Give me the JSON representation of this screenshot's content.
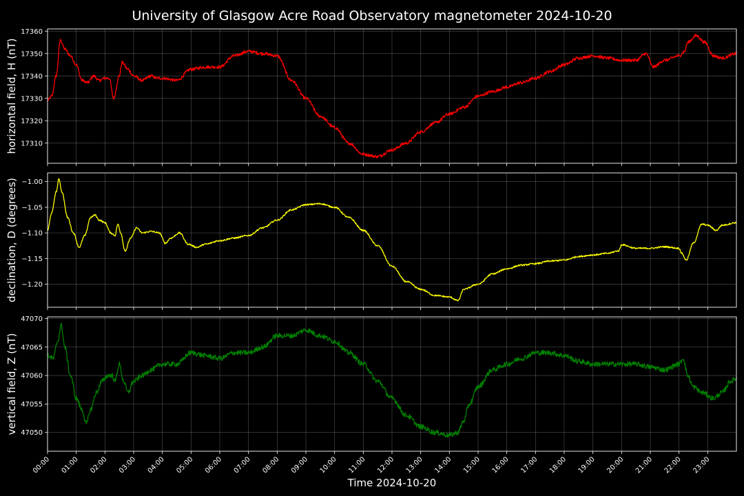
{
  "chart_data": {
    "type": "line",
    "title": "University of Glasgow Acre Road Observatory magnetometer 2024-10-20",
    "xlabel": "Time 2024-10-20",
    "x_ticks": [
      "00:00",
      "01:00",
      "02:00",
      "03:00",
      "04:00",
      "05:00",
      "06:00",
      "07:00",
      "08:00",
      "09:00",
      "10:00",
      "11:00",
      "12:00",
      "13:00",
      "14:00",
      "15:00",
      "16:00",
      "17:00",
      "18:00",
      "19:00",
      "20:00",
      "21:00",
      "22:00",
      "23:00"
    ],
    "xlim": [
      0,
      24
    ],
    "grid": true,
    "panels": [
      {
        "name": "H",
        "ylabel": "horizontal field, H (nT)",
        "color": "#ff0000",
        "ylim": [
          17301,
          17361
        ],
        "y_ticks": [
          "17310",
          "17320",
          "17330",
          "17340",
          "17350",
          "17360"
        ],
        "y_tick_values": [
          17310,
          17320,
          17330,
          17340,
          17350,
          17360
        ],
        "noise": 0.7,
        "points": [
          [
            0,
            17329
          ],
          [
            0.15,
            17331
          ],
          [
            0.3,
            17340
          ],
          [
            0.45,
            17356
          ],
          [
            0.6,
            17352
          ],
          [
            0.8,
            17349
          ],
          [
            1.0,
            17345
          ],
          [
            1.2,
            17338
          ],
          [
            1.4,
            17337
          ],
          [
            1.6,
            17340
          ],
          [
            1.8,
            17338
          ],
          [
            2.0,
            17339
          ],
          [
            2.15,
            17339
          ],
          [
            2.3,
            17330
          ],
          [
            2.5,
            17340
          ],
          [
            2.6,
            17346
          ],
          [
            2.8,
            17343
          ],
          [
            3.0,
            17340
          ],
          [
            3.3,
            17338
          ],
          [
            3.6,
            17340
          ],
          [
            3.8,
            17339
          ],
          [
            4.0,
            17339
          ],
          [
            4.5,
            17338
          ],
          [
            5.0,
            17343
          ],
          [
            5.5,
            17344
          ],
          [
            6.0,
            17344
          ],
          [
            6.5,
            17349
          ],
          [
            7.0,
            17351
          ],
          [
            7.5,
            17350
          ],
          [
            8.0,
            17349
          ],
          [
            8.5,
            17338
          ],
          [
            9.0,
            17330
          ],
          [
            9.5,
            17322
          ],
          [
            10.0,
            17317
          ],
          [
            10.5,
            17310
          ],
          [
            11.0,
            17305
          ],
          [
            11.5,
            17304
          ],
          [
            12.0,
            17307
          ],
          [
            12.5,
            17310
          ],
          [
            13.0,
            17315
          ],
          [
            13.5,
            17319
          ],
          [
            14.0,
            17323
          ],
          [
            14.5,
            17326
          ],
          [
            15.0,
            17331
          ],
          [
            15.5,
            17333
          ],
          [
            16.0,
            17335
          ],
          [
            16.5,
            17337
          ],
          [
            17.0,
            17339
          ],
          [
            17.5,
            17342
          ],
          [
            18.0,
            17345
          ],
          [
            18.5,
            17348
          ],
          [
            19.0,
            17349
          ],
          [
            19.5,
            17348
          ],
          [
            20.0,
            17347
          ],
          [
            20.5,
            17347
          ],
          [
            20.85,
            17350
          ],
          [
            21.1,
            17344
          ],
          [
            21.5,
            17347
          ],
          [
            22.0,
            17349
          ],
          [
            22.2,
            17351
          ],
          [
            22.3,
            17355
          ],
          [
            22.6,
            17358
          ],
          [
            22.9,
            17355
          ],
          [
            23.2,
            17349
          ],
          [
            23.5,
            17348
          ],
          [
            24.0,
            17350
          ]
        ]
      },
      {
        "name": "D",
        "ylabel": "declination, D (degrees)",
        "color": "#ffff00",
        "ylim": [
          -1.245,
          -0.983
        ],
        "y_ticks": [
          "−1.00",
          "−1.05",
          "−1.10",
          "−1.15",
          "−1.20"
        ],
        "y_tick_values": [
          -1.0,
          -1.05,
          -1.1,
          -1.15,
          -1.2
        ],
        "noise": 0.0015,
        "points": [
          [
            0,
            -1.095
          ],
          [
            0.15,
            -1.06
          ],
          [
            0.3,
            -1.02
          ],
          [
            0.4,
            -0.995
          ],
          [
            0.5,
            -1.02
          ],
          [
            0.7,
            -1.07
          ],
          [
            0.9,
            -1.1
          ],
          [
            1.1,
            -1.128
          ],
          [
            1.3,
            -1.105
          ],
          [
            1.5,
            -1.07
          ],
          [
            1.65,
            -1.065
          ],
          [
            1.8,
            -1.075
          ],
          [
            2.0,
            -1.08
          ],
          [
            2.2,
            -1.1
          ],
          [
            2.35,
            -1.105
          ],
          [
            2.45,
            -1.083
          ],
          [
            2.55,
            -1.1
          ],
          [
            2.7,
            -1.135
          ],
          [
            2.9,
            -1.11
          ],
          [
            3.1,
            -1.09
          ],
          [
            3.3,
            -1.1
          ],
          [
            3.6,
            -1.097
          ],
          [
            3.9,
            -1.1
          ],
          [
            4.1,
            -1.12
          ],
          [
            4.3,
            -1.11
          ],
          [
            4.6,
            -1.1
          ],
          [
            4.9,
            -1.122
          ],
          [
            5.2,
            -1.128
          ],
          [
            5.5,
            -1.122
          ],
          [
            6.0,
            -1.115
          ],
          [
            6.5,
            -1.11
          ],
          [
            7.0,
            -1.105
          ],
          [
            7.5,
            -1.09
          ],
          [
            8.0,
            -1.075
          ],
          [
            8.5,
            -1.055
          ],
          [
            9.0,
            -1.045
          ],
          [
            9.5,
            -1.043
          ],
          [
            10.0,
            -1.05
          ],
          [
            10.5,
            -1.07
          ],
          [
            11.0,
            -1.095
          ],
          [
            11.5,
            -1.125
          ],
          [
            12.0,
            -1.165
          ],
          [
            12.5,
            -1.195
          ],
          [
            13.0,
            -1.21
          ],
          [
            13.5,
            -1.222
          ],
          [
            14.0,
            -1.225
          ],
          [
            14.3,
            -1.232
          ],
          [
            14.5,
            -1.21
          ],
          [
            15.0,
            -1.2
          ],
          [
            15.5,
            -1.18
          ],
          [
            16.0,
            -1.17
          ],
          [
            16.5,
            -1.163
          ],
          [
            17.0,
            -1.16
          ],
          [
            17.5,
            -1.155
          ],
          [
            18.0,
            -1.153
          ],
          [
            18.5,
            -1.146
          ],
          [
            19.0,
            -1.143
          ],
          [
            19.5,
            -1.14
          ],
          [
            19.9,
            -1.135
          ],
          [
            20.0,
            -1.123
          ],
          [
            20.5,
            -1.13
          ],
          [
            21.0,
            -1.13
          ],
          [
            21.5,
            -1.127
          ],
          [
            22.0,
            -1.13
          ],
          [
            22.1,
            -1.14
          ],
          [
            22.25,
            -1.153
          ],
          [
            22.5,
            -1.12
          ],
          [
            22.8,
            -1.083
          ],
          [
            23.0,
            -1.085
          ],
          [
            23.3,
            -1.095
          ],
          [
            23.5,
            -1.085
          ],
          [
            24.0,
            -1.08
          ]
        ]
      },
      {
        "name": "Z",
        "ylabel": "vertical field, Z (nT)",
        "color": "#008000",
        "ylim": [
          47046.7,
          47070.3
        ],
        "y_ticks": [
          "47050",
          "47055",
          "47060",
          "47065",
          "47070"
        ],
        "y_tick_values": [
          47050,
          47055,
          47060,
          47065,
          47070
        ],
        "noise": 0.45,
        "points": [
          [
            0,
            47063.5
          ],
          [
            0.2,
            47063
          ],
          [
            0.35,
            47066
          ],
          [
            0.48,
            47068.8
          ],
          [
            0.6,
            47065
          ],
          [
            0.8,
            47060
          ],
          [
            1.0,
            47056
          ],
          [
            1.2,
            47054
          ],
          [
            1.35,
            47051.5
          ],
          [
            1.5,
            47054
          ],
          [
            1.7,
            47057
          ],
          [
            1.9,
            47059
          ],
          [
            2.1,
            47060
          ],
          [
            2.25,
            47060
          ],
          [
            2.35,
            47059
          ],
          [
            2.5,
            47062
          ],
          [
            2.65,
            47059
          ],
          [
            2.8,
            47057
          ],
          [
            3.0,
            47059
          ],
          [
            3.3,
            47060
          ],
          [
            3.6,
            47061
          ],
          [
            4.0,
            47062
          ],
          [
            4.5,
            47062
          ],
          [
            5.0,
            47064
          ],
          [
            5.5,
            47063.5
          ],
          [
            6.0,
            47063
          ],
          [
            6.5,
            47064
          ],
          [
            7.0,
            47064
          ],
          [
            7.5,
            47065
          ],
          [
            8.0,
            47067
          ],
          [
            8.5,
            47067
          ],
          [
            9.0,
            47068
          ],
          [
            9.5,
            47067
          ],
          [
            10.0,
            47066
          ],
          [
            10.5,
            47064
          ],
          [
            11.0,
            47062
          ],
          [
            11.5,
            47059
          ],
          [
            12.0,
            47056
          ],
          [
            12.5,
            47053
          ],
          [
            13.0,
            47051
          ],
          [
            13.5,
            47050
          ],
          [
            14.0,
            47049.5
          ],
          [
            14.3,
            47050
          ],
          [
            14.5,
            47052
          ],
          [
            14.7,
            47055
          ],
          [
            15.0,
            47058
          ],
          [
            15.5,
            47061
          ],
          [
            16.0,
            47062
          ],
          [
            16.5,
            47063
          ],
          [
            17.0,
            47064
          ],
          [
            17.5,
            47064
          ],
          [
            18.0,
            47063.5
          ],
          [
            18.5,
            47062.5
          ],
          [
            19.0,
            47062
          ],
          [
            19.5,
            47062
          ],
          [
            20.0,
            47062
          ],
          [
            20.5,
            47062
          ],
          [
            21.0,
            47061.5
          ],
          [
            21.5,
            47061
          ],
          [
            22.0,
            47062
          ],
          [
            22.15,
            47063
          ],
          [
            22.3,
            47060
          ],
          [
            22.5,
            47058
          ],
          [
            22.8,
            47057
          ],
          [
            23.2,
            47056
          ],
          [
            23.5,
            47057
          ],
          [
            23.8,
            47059
          ],
          [
            24.0,
            47059.5
          ]
        ]
      }
    ]
  }
}
